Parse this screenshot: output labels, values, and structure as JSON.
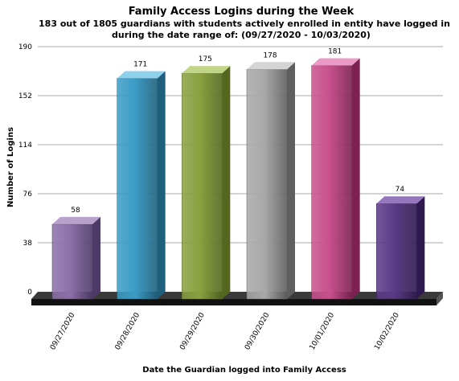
{
  "chart_data": {
    "type": "bar",
    "title": "Family Access Logins during the Week",
    "subtitle_lines": [
      "183 out of 1805 guardians with students actively enrolled in entity have logged in",
      "during the date range of: (09/27/2020 - 10/03/2020)"
    ],
    "xlabel": "Date the Guardian logged into Family Access",
    "ylabel": "Number of Logins",
    "categories": [
      "09/27/2020",
      "09/28/2020",
      "09/29/2020",
      "09/30/2020",
      "10/01/2020",
      "10/02/2020"
    ],
    "values": [
      58,
      171,
      175,
      178,
      181,
      74
    ],
    "data_labels": [
      "58",
      "171",
      "175",
      "178",
      "181",
      "74"
    ],
    "yticks": [
      "0",
      "38",
      "76",
      "114",
      "152",
      "190"
    ],
    "ytick_values": [
      0,
      38,
      76,
      114,
      152,
      190
    ],
    "ylim": [
      0,
      190
    ],
    "grid": true,
    "legend": "none",
    "three_d": true,
    "colors": [
      {
        "front": "#8c70a8",
        "side": "#4d3a66",
        "top": "#b7a2cc"
      },
      {
        "front": "#3b9cc6",
        "side": "#1f5f7d",
        "top": "#8fd0ea"
      },
      {
        "front": "#8aa040",
        "side": "#55671f",
        "top": "#c2d487"
      },
      {
        "front": "#a8a8a8",
        "side": "#5f5f5f",
        "top": "#d4d4d4"
      },
      {
        "front": "#c8508e",
        "side": "#7d2152",
        "top": "#ea9ac4"
      },
      {
        "front": "#5a3a86",
        "side": "#2f1a4f",
        "top": "#9477bd"
      }
    ]
  }
}
